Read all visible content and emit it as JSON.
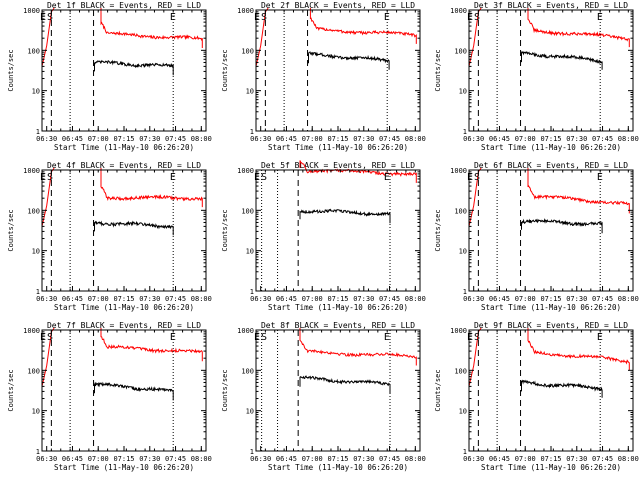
{
  "chart_data": [
    {
      "type": "line",
      "title": "Det 1f BLACK = Events, RED = LLD",
      "xlabel": "Start Time (11-May-10 06:26:20)",
      "ylabel": "Counts/sec",
      "ylim": [
        1,
        1000
      ],
      "yscale": "log",
      "yticks": [
        "1",
        "10",
        "100",
        "1000"
      ],
      "xticks": [
        "06:30",
        "06:45",
        "07:00",
        "07:15",
        "07:30",
        "07:45",
        "08:00"
      ],
      "flags": [
        "E",
        "S",
        "E"
      ],
      "markers": {
        "dashed": [
          1,
          5.5
        ],
        "dotted": [
          3,
          14
        ]
      },
      "series": [
        {
          "color": "#ff0000",
          "start": [
            [
              0,
              40
            ],
            [
              0.5,
              130
            ],
            [
              1,
              900
            ]
          ],
          "from": 6.3,
          "to": 17.1,
          "base": 260,
          "end": 190
        },
        {
          "color": "#000000",
          "from": 5.6,
          "to": 14,
          "base": 50,
          "end": 40
        }
      ]
    },
    {
      "type": "line",
      "title": "Det 2f BLACK = Events, RED = LLD",
      "xlabel": "Start Time (11-May-10 06:26:20)",
      "ylabel": "Counts/sec",
      "ylim": [
        1,
        1000
      ],
      "yscale": "log",
      "yticks": [
        "1",
        "10",
        "100",
        "1000"
      ],
      "xticks": [
        "06:30",
        "06:45",
        "07:00",
        "07:15",
        "07:30",
        "07:45",
        "08:00"
      ],
      "flags": [
        "E",
        "S",
        "E"
      ],
      "markers": {
        "dashed": [
          1,
          5.5
        ],
        "dotted": [
          3,
          14
        ]
      },
      "series": [
        {
          "color": "#ff0000",
          "start": [
            [
              0,
              40
            ],
            [
              0.5,
              130
            ],
            [
              1,
              900
            ]
          ],
          "from": 5.8,
          "to": 17.1,
          "base": 330,
          "end": 240
        },
        {
          "color": "#000000",
          "from": 5.6,
          "to": 14.2,
          "base": 80,
          "end": 55
        }
      ]
    },
    {
      "type": "line",
      "title": "Det 3f BLACK = Events, RED = LLD",
      "xlabel": "Start Time (11-May-10 06:26:20)",
      "ylabel": "Counts/sec",
      "ylim": [
        1,
        1000
      ],
      "yscale": "log",
      "yticks": [
        "1",
        "10",
        "100",
        "1000"
      ],
      "xticks": [
        "06:30",
        "06:45",
        "07:00",
        "07:15",
        "07:30",
        "07:45",
        "08:00"
      ],
      "flags": [
        "E",
        "S",
        "E"
      ],
      "markers": {
        "dashed": [
          1,
          5.5
        ],
        "dotted": [
          3,
          14
        ]
      },
      "series": [
        {
          "color": "#ff0000",
          "start": [
            [
              0,
              40
            ],
            [
              0.5,
              130
            ],
            [
              1,
              900
            ]
          ],
          "from": 6.3,
          "to": 17.1,
          "base": 310,
          "end": 200
        },
        {
          "color": "#000000",
          "from": 5.6,
          "to": 14.2,
          "base": 85,
          "end": 55
        }
      ]
    },
    {
      "type": "line",
      "title": "Det 4f BLACK = Events, RED = LLD",
      "xlabel": "Start Time (11-May-10 06:26:20)",
      "ylabel": "Counts/sec",
      "ylim": [
        1,
        1000
      ],
      "yscale": "log",
      "yticks": [
        "1",
        "10",
        "100",
        "1000"
      ],
      "xticks": [
        "06:30",
        "06:45",
        "07:00",
        "07:15",
        "07:30",
        "07:45",
        "08:00"
      ],
      "flags": [
        "E",
        "S",
        "E"
      ],
      "markers": {
        "dashed": [
          1,
          5.5
        ],
        "dotted": [
          3,
          14
        ]
      },
      "series": [
        {
          "color": "#ff0000",
          "start": [
            [
              0,
              40
            ],
            [
              0.5,
              130
            ],
            [
              1,
              900
            ]
          ],
          "from": 6.3,
          "to": 17.1,
          "base": 210,
          "end": 200
        },
        {
          "color": "#000000",
          "from": 5.6,
          "to": 14,
          "base": 50,
          "end": 40
        }
      ]
    },
    {
      "type": "line",
      "title": "Det 5f BLACK = Events, RED = LLD",
      "xlabel": "Start Time (11-May-10 06:26:20)",
      "ylabel": "Counts/sec",
      "ylim": [
        1,
        1000
      ],
      "yscale": "log",
      "yticks": [
        "1",
        "10",
        "100",
        "1000"
      ],
      "xticks": [
        "06:30",
        "06:45",
        "07:00",
        "07:15",
        "07:30",
        "07:45",
        "08:00"
      ],
      "flags": [
        "E",
        "S",
        "E"
      ],
      "markers": {
        "dashed": [
          4.5
        ],
        "dotted": [
          0.6,
          2.3,
          14.3
        ]
      },
      "series": [
        {
          "color": "#ff0000",
          "from": 4.7,
          "to": 17.1,
          "base": 1000,
          "end": 800
        },
        {
          "color": "#000000",
          "from": 4.7,
          "to": 14.3,
          "base": 100,
          "end": 80
        }
      ]
    },
    {
      "type": "line",
      "title": "Det 6f BLACK = Events, RED = LLD",
      "xlabel": "Start Time (11-May-10 06:26:20)",
      "ylabel": "Counts/sec",
      "ylim": [
        1,
        1000
      ],
      "yscale": "log",
      "yticks": [
        "1",
        "10",
        "100",
        "1000"
      ],
      "xticks": [
        "06:30",
        "06:45",
        "07:00",
        "07:15",
        "07:30",
        "07:45",
        "08:00"
      ],
      "flags": [
        "E",
        "S",
        "E"
      ],
      "markers": {
        "dashed": [
          1,
          5.5
        ],
        "dotted": [
          3,
          14
        ]
      },
      "series": [
        {
          "color": "#ff0000",
          "start": [
            [
              0,
              40
            ],
            [
              0.5,
              130
            ],
            [
              1,
              900
            ]
          ],
          "from": 6.3,
          "to": 17.1,
          "base": 230,
          "end": 140
        },
        {
          "color": "#000000",
          "from": 5.6,
          "to": 14.2,
          "base": 55,
          "end": 45
        }
      ]
    },
    {
      "type": "line",
      "title": "Det 7f BLACK = Events, RED = LLD",
      "xlabel": "Start Time (11-May-10 06:26:20)",
      "ylabel": "Counts/sec",
      "ylim": [
        1,
        1000
      ],
      "yscale": "log",
      "yticks": [
        "1",
        "10",
        "100",
        "1000"
      ],
      "xticks": [
        "06:30",
        "06:45",
        "07:00",
        "07:15",
        "07:30",
        "07:45",
        "08:00"
      ],
      "flags": [
        "E",
        "S",
        "E"
      ],
      "markers": {
        "dashed": [
          1,
          5.5
        ],
        "dotted": [
          3,
          14
        ]
      },
      "series": [
        {
          "color": "#ff0000",
          "start": [
            [
              0,
              40
            ],
            [
              0.5,
              130
            ],
            [
              1,
              900
            ]
          ],
          "from": 6.3,
          "to": 17.1,
          "base": 380,
          "end": 280
        },
        {
          "color": "#000000",
          "from": 5.6,
          "to": 14,
          "base": 45,
          "end": 30
        }
      ]
    },
    {
      "type": "line",
      "title": "Det 8f BLACK = Events, RED = LLD",
      "xlabel": "Start Time (11-May-10 06:26:20)",
      "ylabel": "Counts/sec",
      "ylim": [
        1,
        1000
      ],
      "yscale": "log",
      "yticks": [
        "1",
        "10",
        "100",
        "1000"
      ],
      "xticks": [
        "06:30",
        "06:45",
        "07:00",
        "07:15",
        "07:30",
        "07:45",
        "08:00"
      ],
      "flags": [
        "E",
        "S",
        "E"
      ],
      "markers": {
        "dashed": [
          4.5
        ],
        "dotted": [
          0.6,
          2.3,
          14.3
        ]
      },
      "series": [
        {
          "color": "#ff0000",
          "from": 4.7,
          "to": 17.1,
          "base": 290,
          "end": 220
        },
        {
          "color": "#000000",
          "from": 4.7,
          "to": 14.3,
          "base": 65,
          "end": 45
        }
      ]
    },
    {
      "type": "line",
      "title": "Det 9f BLACK = Events, RED = LLD",
      "xlabel": "Start Time (11-May-10 06:26:20)",
      "ylabel": "Counts/sec",
      "ylim": [
        1,
        1000
      ],
      "yscale": "log",
      "yticks": [
        "1",
        "10",
        "100",
        "1000"
      ],
      "xticks": [
        "06:30",
        "06:45",
        "07:00",
        "07:15",
        "07:30",
        "07:45",
        "08:00"
      ],
      "flags": [
        "E",
        "S",
        "E"
      ],
      "markers": {
        "dashed": [
          1,
          5.5
        ],
        "dotted": [
          3,
          14
        ]
      },
      "series": [
        {
          "color": "#ff0000",
          "start": [
            [
              0,
              40
            ],
            [
              0.5,
              130
            ],
            [
              1,
              900
            ]
          ],
          "from": 6.3,
          "to": 17.1,
          "base": 280,
          "end": 170
        },
        {
          "color": "#000000",
          "from": 5.6,
          "to": 14.2,
          "base": 50,
          "end": 35
        }
      ]
    }
  ]
}
